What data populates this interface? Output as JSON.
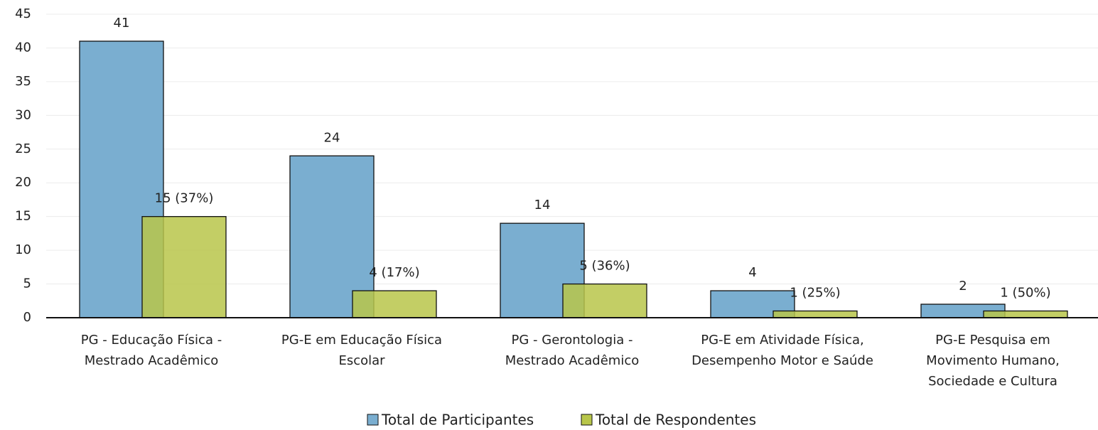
{
  "chart_data": {
    "type": "bar",
    "categories": [
      [
        "PG - Educação Física -",
        "Mestrado Acadêmico"
      ],
      [
        "PG-E em Educação Física",
        "Escolar"
      ],
      [
        "PG - Gerontologia -",
        "Mestrado Acadêmico"
      ],
      [
        "PG-E em Atividade Física,",
        "Desempenho Motor e Saúde"
      ],
      [
        "PG-E Pesquisa em",
        "Movimento Humano,",
        "Sociedade e Cultura"
      ]
    ],
    "series": [
      {
        "name": "Total de Participantes",
        "color": "#7aaed0",
        "values": [
          41,
          24,
          14,
          4,
          2
        ]
      },
      {
        "name": "Total de Respondentes",
        "color": "#b8c64a",
        "values": [
          15,
          4,
          5,
          1,
          1
        ],
        "value_labels": [
          "15 (37%)",
          "4 (17%)",
          "5 (36%)",
          "1 (25%)",
          "1 (50%)"
        ]
      }
    ],
    "ylim": [
      0,
      45
    ],
    "yticks": [
      0,
      5,
      10,
      15,
      20,
      25,
      30,
      35,
      40,
      45
    ],
    "grid": true,
    "legend": "bottom"
  }
}
